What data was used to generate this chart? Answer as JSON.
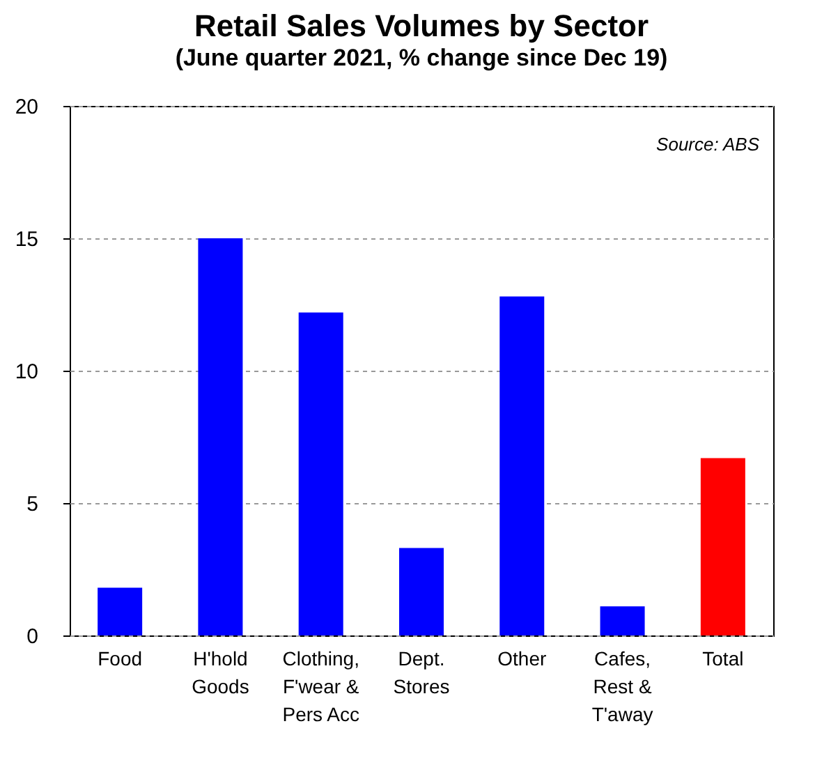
{
  "chart_data": {
    "type": "bar",
    "title": "Retail Sales Volumes by Sector",
    "subtitle": "(June quarter 2021, % change since Dec 19)",
    "categories": [
      "Food",
      "H'hold\nGoods",
      "Clothing,\nF'wear &\nPers Acc",
      "Dept.\nStores",
      "Other",
      "Cafes,\nRest &\nT'away",
      "Total"
    ],
    "values": [
      1.8,
      15.0,
      12.2,
      3.3,
      12.8,
      1.1,
      6.7
    ],
    "colors": [
      "#0000ff",
      "#0000ff",
      "#0000ff",
      "#0000ff",
      "#0000ff",
      "#0000ff",
      "#ff0000"
    ],
    "ylim": [
      0,
      20
    ],
    "yticks": [
      0,
      5,
      10,
      15,
      20
    ],
    "grid": "y",
    "annotations": [
      "Source: ABS"
    ]
  }
}
